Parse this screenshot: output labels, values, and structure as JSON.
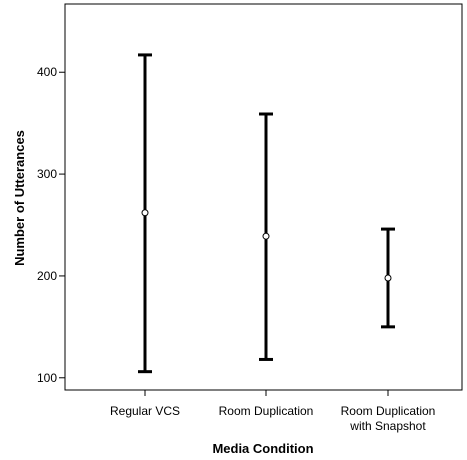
{
  "chart_data": {
    "type": "errorbar",
    "title": "",
    "xlabel": "Media Condition",
    "ylabel": "Number of Utterances",
    "categories": [
      [
        "Regular VCS"
      ],
      [
        "Room Duplication"
      ],
      [
        "Room Duplication",
        "with Snapshot"
      ]
    ],
    "means": [
      262,
      239,
      198
    ],
    "lower": [
      106,
      118,
      150
    ],
    "upper": [
      417,
      359,
      246
    ],
    "yticks": [
      100,
      200,
      300,
      400
    ],
    "ylim": [
      88,
      467
    ],
    "grid": false,
    "legend": "none"
  }
}
